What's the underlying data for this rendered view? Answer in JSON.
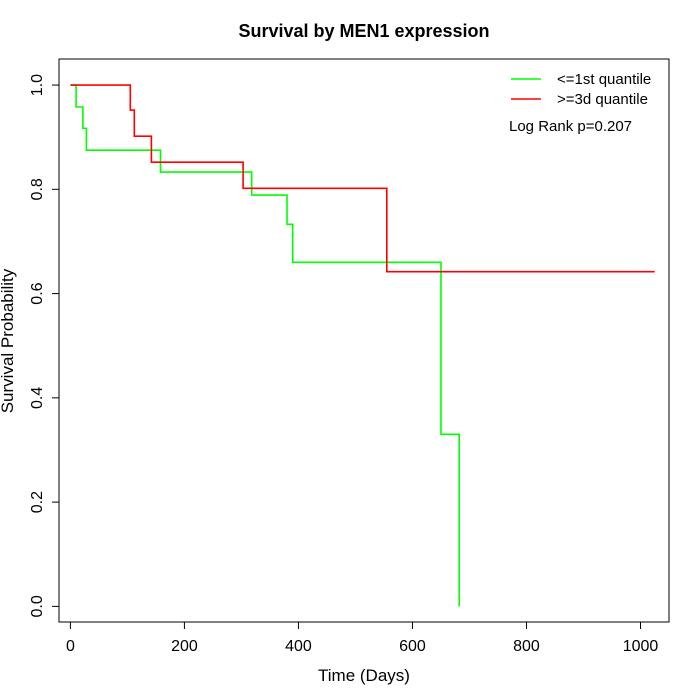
{
  "chart_data": {
    "type": "line",
    "title": "Survival by MEN1 expression",
    "xlabel": "Time (Days)",
    "ylabel": "Survival Probability",
    "xlim": [
      -20,
      1050
    ],
    "ylim": [
      -0.03,
      1.05
    ],
    "x_ticks": [
      0,
      200,
      400,
      600,
      800,
      1000
    ],
    "y_ticks": [
      0.0,
      0.2,
      0.4,
      0.6,
      0.8,
      1.0
    ],
    "x_tick_labels": [
      "0",
      "200",
      "400",
      "600",
      "800",
      "1000"
    ],
    "y_tick_labels": [
      "0.0",
      "0.2",
      "0.4",
      "0.6",
      "0.8",
      "1.0"
    ],
    "grid": false,
    "legend_position": "top-right",
    "annotation": "Log Rank p=0.207",
    "series": [
      {
        "name": "<=1st quantile",
        "color": "#00ff00",
        "x": [
          0,
          10,
          10,
          22,
          22,
          25,
          25,
          28,
          28,
          158,
          158,
          318,
          318,
          380,
          380,
          390,
          390,
          650,
          650,
          682,
          682
        ],
        "y": [
          1.0,
          1.0,
          0.958,
          0.958,
          0.917,
          0.917,
          0.917,
          0.917,
          0.875,
          0.875,
          0.833,
          0.833,
          0.789,
          0.789,
          0.733,
          0.733,
          0.66,
          0.66,
          0.33,
          0.33,
          0.0
        ]
      },
      {
        "name": ">=3d quantile",
        "color": "#ff0000",
        "x": [
          0,
          105,
          105,
          112,
          112,
          142,
          142,
          303,
          303,
          555,
          555,
          1025
        ],
        "y": [
          1.0,
          1.0,
          0.952,
          0.952,
          0.902,
          0.902,
          0.852,
          0.852,
          0.802,
          0.802,
          0.642,
          0.642
        ]
      }
    ]
  }
}
